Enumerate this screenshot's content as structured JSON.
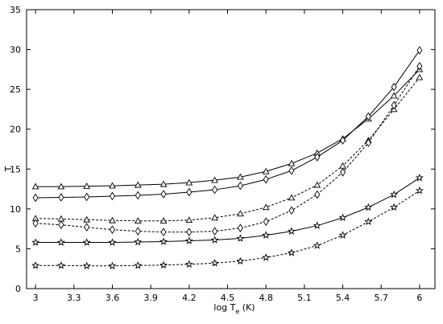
{
  "chart_data": {
    "type": "line",
    "title": "",
    "xlabel": "log T",
    "xlabel_sub": "e",
    "xlabel_unit": " (K)",
    "ylabel": "T",
    "xlim": [
      2.93,
      6.12
    ],
    "ylim": [
      0,
      35
    ],
    "xticks": [
      "3",
      "3.3",
      "3.6",
      "3.9",
      "4.2",
      "4.5",
      "4.8",
      "5.1",
      "5.4",
      "5.7",
      "6"
    ],
    "xtick_values": [
      3,
      3.3,
      3.6,
      3.9,
      4.2,
      4.5,
      4.8,
      5.1,
      5.4,
      5.7,
      6
    ],
    "yticks": [
      "0",
      "5",
      "10",
      "15",
      "20",
      "25",
      "30",
      "35"
    ],
    "ytick_values": [
      0,
      5,
      10,
      15,
      20,
      25,
      30,
      35
    ],
    "grid": false,
    "x": [
      3.0,
      3.2,
      3.4,
      3.6,
      3.8,
      4.0,
      4.2,
      4.4,
      4.6,
      4.8,
      5.0,
      5.2,
      5.4,
      5.6,
      5.8,
      6.0
    ],
    "series": [
      {
        "marker": "triangle",
        "dash": "solid",
        "values": [
          12.8,
          12.8,
          12.85,
          12.9,
          13.0,
          13.1,
          13.3,
          13.6,
          14.0,
          14.7,
          15.7,
          17.0,
          18.8,
          21.3,
          24.2,
          27.5
        ]
      },
      {
        "marker": "diamond",
        "dash": "solid",
        "values": [
          11.4,
          11.45,
          11.5,
          11.6,
          11.7,
          11.85,
          12.1,
          12.4,
          12.9,
          13.7,
          14.8,
          16.5,
          18.6,
          21.6,
          25.3,
          29.9
        ]
      },
      {
        "marker": "triangle",
        "dash": "dashed",
        "values": [
          8.8,
          8.75,
          8.65,
          8.55,
          8.5,
          8.5,
          8.6,
          8.9,
          9.4,
          10.2,
          11.4,
          13.0,
          15.4,
          18.6,
          22.5,
          26.5
        ]
      },
      {
        "marker": "diamond",
        "dash": "dashed",
        "values": [
          8.2,
          8.0,
          7.7,
          7.4,
          7.2,
          7.1,
          7.1,
          7.2,
          7.6,
          8.4,
          9.8,
          11.8,
          14.6,
          18.3,
          23.0,
          27.9
        ]
      },
      {
        "marker": "star",
        "dash": "solid",
        "values": [
          5.8,
          5.8,
          5.8,
          5.8,
          5.85,
          5.9,
          6.0,
          6.1,
          6.3,
          6.7,
          7.2,
          7.9,
          8.9,
          10.2,
          11.8,
          13.9
        ]
      },
      {
        "marker": "star",
        "dash": "dashed",
        "values": [
          2.9,
          2.9,
          2.85,
          2.85,
          2.9,
          2.95,
          3.05,
          3.2,
          3.45,
          3.9,
          4.5,
          5.4,
          6.7,
          8.4,
          10.2,
          12.3
        ]
      }
    ]
  }
}
